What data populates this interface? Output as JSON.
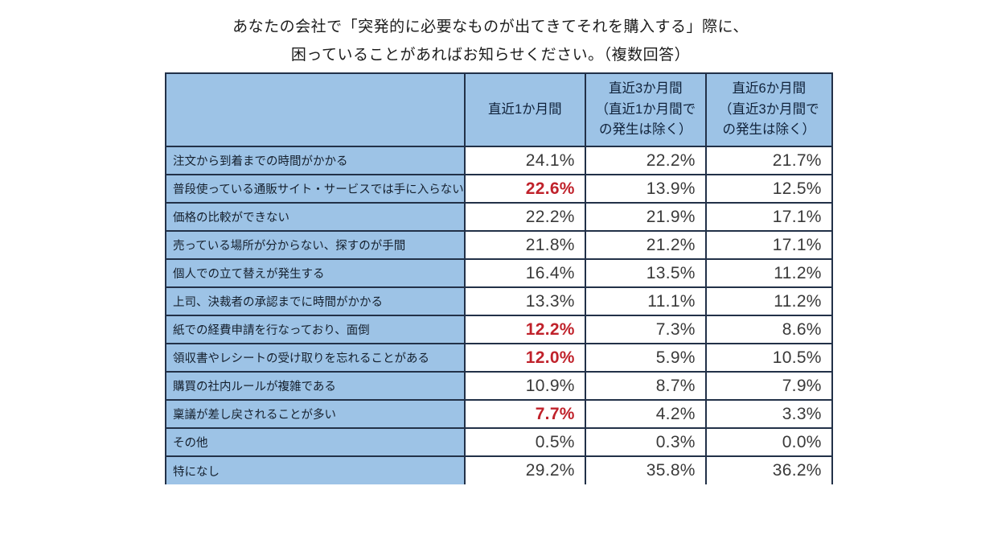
{
  "title": {
    "line1": "あなたの会社で「突発的に必要なものが出てきてそれを購入する」際に、",
    "line2": "困っていることがあればお知らせください。（複数回答）"
  },
  "colors": {
    "cell_blue": "#9dc3e6",
    "border": "#223148",
    "highlight_red": "#c0222b",
    "value_text": "#3a3a3a",
    "label_text": "#15202e"
  },
  "table": {
    "column_headers": [
      "直近1か月間",
      "直近3か月間\n（直近1か月間で\nの発生は除く）",
      "直近6か月間\n（直近3か月間で\nの発生は除く）"
    ],
    "rows": [
      {
        "label": "注文から到着までの時間がかかる",
        "values": [
          "24.1%",
          "22.2%",
          "21.7%"
        ],
        "highlight": [
          false,
          false,
          false
        ]
      },
      {
        "label": "普段使っている通販サイト・サービスでは手に入らない",
        "values": [
          "22.6%",
          "13.9%",
          "12.5%"
        ],
        "highlight": [
          true,
          false,
          false
        ]
      },
      {
        "label": "価格の比較ができない",
        "values": [
          "22.2%",
          "21.9%",
          "17.1%"
        ],
        "highlight": [
          false,
          false,
          false
        ]
      },
      {
        "label": "売っている場所が分からない、探すのが手間",
        "values": [
          "21.8%",
          "21.2%",
          "17.1%"
        ],
        "highlight": [
          false,
          false,
          false
        ]
      },
      {
        "label": "個人での立て替えが発生する",
        "values": [
          "16.4%",
          "13.5%",
          "11.2%"
        ],
        "highlight": [
          false,
          false,
          false
        ]
      },
      {
        "label": "上司、決裁者の承認までに時間がかかる",
        "values": [
          "13.3%",
          "11.1%",
          "11.2%"
        ],
        "highlight": [
          false,
          false,
          false
        ]
      },
      {
        "label": "紙での経費申請を行なっており、面倒",
        "values": [
          "12.2%",
          "7.3%",
          "8.6%"
        ],
        "highlight": [
          true,
          false,
          false
        ]
      },
      {
        "label": "領収書やレシートの受け取りを忘れることがある",
        "values": [
          "12.0%",
          "5.9%",
          "10.5%"
        ],
        "highlight": [
          true,
          false,
          false
        ]
      },
      {
        "label": "購買の社内ルールが複雑である",
        "values": [
          "10.9%",
          "8.7%",
          "7.9%"
        ],
        "highlight": [
          false,
          false,
          false
        ]
      },
      {
        "label": "稟議が差し戻されることが多い",
        "values": [
          "7.7%",
          "4.2%",
          "3.3%"
        ],
        "highlight": [
          true,
          false,
          false
        ]
      },
      {
        "label": "その他",
        "values": [
          "0.5%",
          "0.3%",
          "0.0%"
        ],
        "highlight": [
          false,
          false,
          false
        ]
      },
      {
        "label": "特になし",
        "values": [
          "29.2%",
          "35.8%",
          "36.2%"
        ],
        "highlight": [
          false,
          false,
          false
        ]
      }
    ]
  },
  "chart_data": {
    "type": "table",
    "title": "あなたの会社で「突発的に必要なものが出てきてそれを購入する」際に、困っていることがあればお知らせください。（複数回答）",
    "unit": "%",
    "categories": [
      "注文から到着までの時間がかかる",
      "普段使っている通販サイト・サービスでは手に入らない",
      "価格の比較ができない",
      "売っている場所が分からない、探すのが手間",
      "個人での立て替えが発生する",
      "上司、決裁者の承認までに時間がかかる",
      "紙での経費申請を行なっており、面倒",
      "領収書やレシートの受け取りを忘れることがある",
      "購買の社内ルールが複雑である",
      "稟議が差し戻されることが多い",
      "その他",
      "特になし"
    ],
    "series": [
      {
        "name": "直近1か月間",
        "values": [
          24.1,
          22.6,
          22.2,
          21.8,
          16.4,
          13.3,
          12.2,
          12.0,
          10.9,
          7.7,
          0.5,
          29.2
        ]
      },
      {
        "name": "直近3か月間（直近1か月間での発生は除く）",
        "values": [
          22.2,
          13.9,
          21.9,
          21.2,
          13.5,
          11.1,
          7.3,
          5.9,
          8.7,
          4.2,
          0.3,
          35.8
        ]
      },
      {
        "name": "直近6か月間（直近3か月間での発生は除く）",
        "values": [
          21.7,
          12.5,
          17.1,
          17.1,
          11.2,
          11.2,
          8.6,
          10.5,
          7.9,
          3.3,
          0.0,
          36.2
        ]
      }
    ],
    "highlighted_red_values_column1": [
      22.6,
      12.2,
      12.0,
      7.7
    ],
    "layout": {
      "grid": true,
      "legend_position": "column-headers"
    }
  }
}
